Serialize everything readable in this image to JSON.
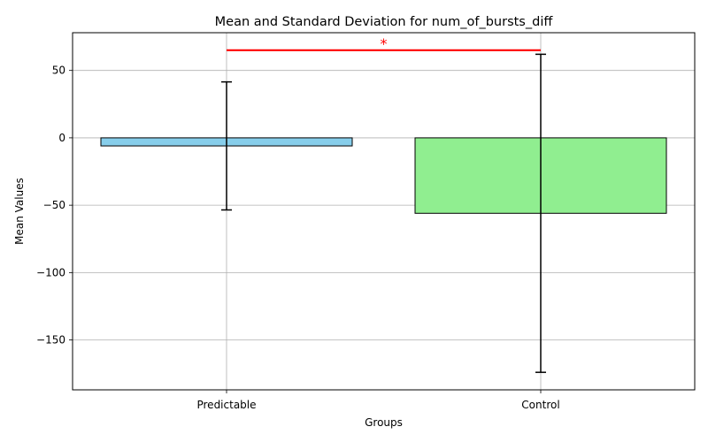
{
  "chart_data": {
    "type": "bar",
    "title": "Mean and Standard Deviation for num_of_bursts_diff",
    "xlabel": "Groups",
    "ylabel": "Mean Values",
    "categories": [
      "Predictable",
      "Control"
    ],
    "values": [
      -6,
      -56
    ],
    "error": [
      47.5,
      118
    ],
    "colors": [
      "#87ceeb",
      "#90ee90"
    ],
    "ylim": [
      -187,
      78
    ],
    "yticks": [
      50,
      0,
      -50,
      -100,
      -150
    ],
    "ytick_labels": [
      "50",
      "0",
      "−50",
      "−100",
      "−150"
    ],
    "grid": true,
    "significance": {
      "label": "*",
      "y": 65,
      "from": "Predictable",
      "to": "Control",
      "color": "#ff0000"
    }
  }
}
